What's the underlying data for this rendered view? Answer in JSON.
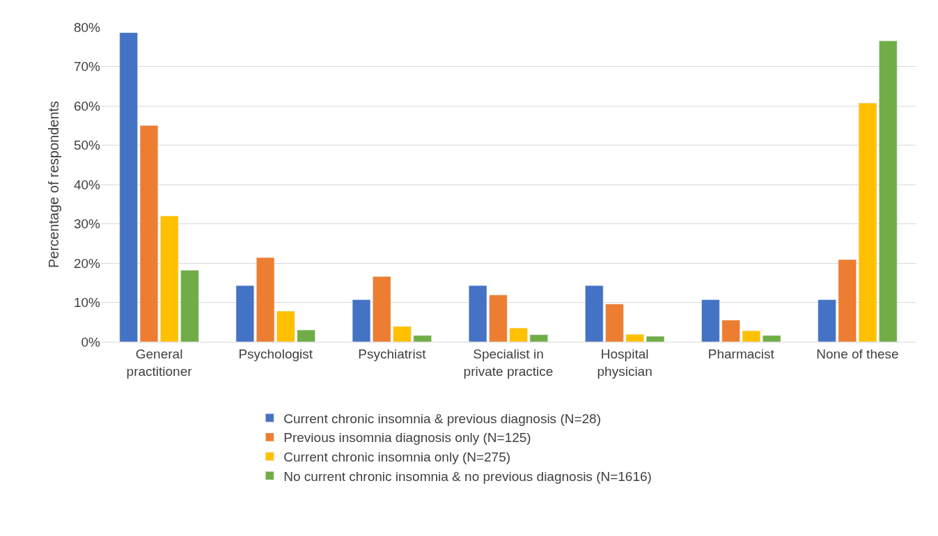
{
  "chart_data": {
    "type": "bar",
    "ylabel": "Percentage of respondents",
    "categories": [
      "General practitioner",
      "Psychologist",
      "Psychiatrist",
      "Specialist in private practice",
      "Hospital physician",
      "Pharmacist",
      "None of these"
    ],
    "series": [
      {
        "name": "Current chronic insomnia & previous diagnosis (N=28)",
        "color": "#4472c4",
        "values": [
          78.6,
          14.3,
          10.7,
          14.3,
          14.3,
          10.7,
          10.7
        ]
      },
      {
        "name": "Previous insomnia diagnosis only (N=125)",
        "color": "#ed7d31",
        "values": [
          55.0,
          21.4,
          16.6,
          11.9,
          9.6,
          5.5,
          20.9
        ]
      },
      {
        "name": "Current chronic insomnia only (N=275)",
        "color": "#ffc000",
        "values": [
          32.0,
          7.8,
          3.9,
          3.5,
          1.9,
          2.8,
          60.7
        ]
      },
      {
        "name": "No current chronic insomnia & no previous diagnosis (N=1616)",
        "color": "#70ad47",
        "values": [
          18.2,
          3.0,
          1.6,
          1.8,
          1.4,
          1.6,
          76.5
        ]
      }
    ],
    "ylim": [
      0,
      80
    ],
    "yticks": [
      {
        "value": 0,
        "label": "0%"
      },
      {
        "value": 10,
        "label": "10%"
      },
      {
        "value": 20,
        "label": "20%"
      },
      {
        "value": 30,
        "label": "30%"
      },
      {
        "value": 40,
        "label": "40%"
      },
      {
        "value": 50,
        "label": "50%"
      },
      {
        "value": 60,
        "label": "60%"
      },
      {
        "value": 70,
        "label": "70%"
      },
      {
        "value": 80,
        "label": "80%"
      }
    ],
    "grid": "y",
    "legend": "bottom"
  }
}
